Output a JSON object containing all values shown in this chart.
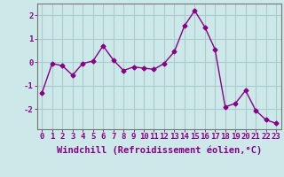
{
  "x": [
    0,
    1,
    2,
    3,
    4,
    5,
    6,
    7,
    8,
    9,
    10,
    11,
    12,
    13,
    14,
    15,
    16,
    17,
    18,
    19,
    20,
    21,
    22,
    23
  ],
  "y": [
    -1.3,
    -0.05,
    -0.15,
    -0.55,
    -0.05,
    0.05,
    0.7,
    0.1,
    -0.35,
    -0.2,
    -0.25,
    -0.3,
    -0.05,
    0.45,
    1.55,
    2.2,
    1.5,
    0.55,
    -1.9,
    -1.75,
    -1.2,
    -2.05,
    -2.45,
    -2.6
  ],
  "line_color": "#880088",
  "marker": "D",
  "markersize": 2.5,
  "linewidth": 1.0,
  "bgcolor": "#cce8e8",
  "grid_color": "#aacccc",
  "xlabel": "Windchill (Refroidissement éolien,°C)",
  "xlabel_fontsize": 7.5,
  "yticks": [
    -2,
    -1,
    0,
    1,
    2
  ],
  "xticks": [
    0,
    1,
    2,
    3,
    4,
    5,
    6,
    7,
    8,
    9,
    10,
    11,
    12,
    13,
    14,
    15,
    16,
    17,
    18,
    19,
    20,
    21,
    22,
    23
  ],
  "xlim": [
    -0.5,
    23.5
  ],
  "ylim": [
    -2.85,
    2.5
  ],
  "tick_fontsize": 6.5,
  "spine_color": "#777777"
}
